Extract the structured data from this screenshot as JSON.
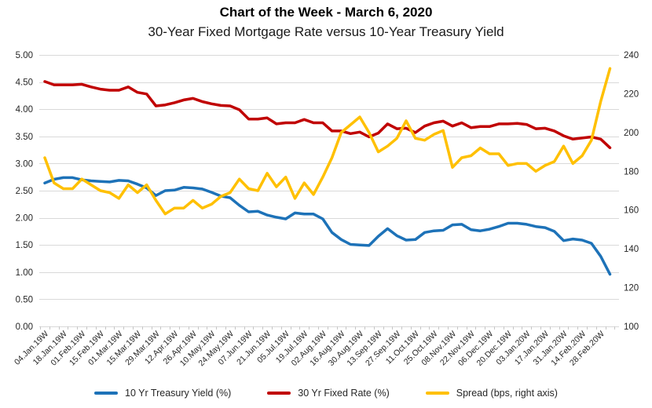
{
  "header": {
    "title": "Chart of the Week - March 6, 2020",
    "subtitle": "30-Year Fixed Mortgage Rate versus 10-Year Treasury Yield"
  },
  "chart_data": {
    "type": "line",
    "title": "Chart of the Week - March 6, 2020",
    "subtitle": "30-Year Fixed Mortgage Rate versus 10-Year Treasury Yield",
    "grid": "horizontal",
    "legend_position": "bottom",
    "n_points": 62,
    "points_per_label": 2,
    "x_tick_labels": [
      "04.Jan.19W",
      "18.Jan.19W",
      "01.Feb.19W",
      "15.Feb.19W",
      "01.Mar.19W",
      "15.Mar.19W",
      "29.Mar.19W",
      "12.Apr.19W",
      "26.Apr.19W",
      "10.May.19W",
      "24.May.19W",
      "07.Jun.19W",
      "21.Jun.19W",
      "05.Jul.19W",
      "19.Jul.19W",
      "02.Aug.19W",
      "16.Aug.19W",
      "30.Aug.19W",
      "13.Sep.19W",
      "27.Sep.19W",
      "11.Oct.19W",
      "25.Oct.19W",
      "08.Nov.19W",
      "22.Nov.19W",
      "06.Dec.19W",
      "20.Dec.19W",
      "03.Jan.20W",
      "17.Jan.20W",
      "31.Jan.20W",
      "14.Feb.20W",
      "28.Feb.20W"
    ],
    "left_axis": {
      "min": 0.0,
      "max": 5.0,
      "step": 0.5,
      "tick_labels": [
        "5.00",
        "4.50",
        "4.00",
        "3.50",
        "3.00",
        "2.50",
        "2.00",
        "1.50",
        "1.00",
        "0.50",
        "0.00"
      ]
    },
    "right_axis": {
      "min": 100,
      "max": 240,
      "step": 20,
      "tick_labels": [
        "240",
        "220",
        "200",
        "180",
        "160",
        "140",
        "120",
        "100"
      ]
    },
    "series": [
      {
        "name": "10 Yr Treasury Yield (%)",
        "axis": "left",
        "color": "#1D72B8",
        "values": [
          2.64,
          2.71,
          2.74,
          2.74,
          2.7,
          2.68,
          2.67,
          2.66,
          2.69,
          2.68,
          2.62,
          2.55,
          2.41,
          2.5,
          2.51,
          2.56,
          2.55,
          2.53,
          2.47,
          2.4,
          2.37,
          2.23,
          2.11,
          2.12,
          2.05,
          2.01,
          1.98,
          2.09,
          2.07,
          2.07,
          1.98,
          1.73,
          1.6,
          1.51,
          1.5,
          1.49,
          1.66,
          1.8,
          1.67,
          1.59,
          1.6,
          1.73,
          1.76,
          1.77,
          1.87,
          1.88,
          1.78,
          1.76,
          1.79,
          1.84,
          1.9,
          1.9,
          1.88,
          1.84,
          1.82,
          1.75,
          1.58,
          1.61,
          1.59,
          1.53,
          1.29,
          0.96
        ]
      },
      {
        "name": "30 Yr Fixed Rate (%)",
        "axis": "left",
        "color": "#C00000",
        "values": [
          4.51,
          4.45,
          4.45,
          4.45,
          4.46,
          4.41,
          4.37,
          4.35,
          4.35,
          4.41,
          4.31,
          4.28,
          4.06,
          4.08,
          4.12,
          4.17,
          4.2,
          4.14,
          4.1,
          4.07,
          4.06,
          3.99,
          3.82,
          3.82,
          3.84,
          3.73,
          3.75,
          3.75,
          3.81,
          3.75,
          3.75,
          3.6,
          3.6,
          3.55,
          3.58,
          3.49,
          3.56,
          3.73,
          3.64,
          3.65,
          3.57,
          3.69,
          3.75,
          3.78,
          3.69,
          3.75,
          3.66,
          3.68,
          3.68,
          3.73,
          3.73,
          3.74,
          3.72,
          3.64,
          3.65,
          3.6,
          3.51,
          3.45,
          3.47,
          3.49,
          3.45,
          3.29
        ]
      },
      {
        "name": "Spread (bps, right axis)",
        "axis": "right",
        "color": "#FFC000",
        "values": [
          187,
          174,
          171,
          171,
          176,
          173,
          170,
          169,
          166,
          173,
          169,
          173,
          165,
          158,
          161,
          161,
          165,
          161,
          163,
          167,
          169,
          176,
          171,
          170,
          179,
          172,
          177,
          166,
          174,
          168,
          177,
          187,
          200,
          204,
          208,
          200,
          190,
          193,
          197,
          206,
          197,
          196,
          199,
          201,
          182,
          187,
          188,
          192,
          189,
          189,
          183,
          184,
          184,
          180,
          183,
          185,
          193,
          184,
          188,
          196,
          216,
          233
        ]
      }
    ],
    "style": {
      "gridline_color": "#D9D9D9",
      "tick_color": "#C6C6C6",
      "axis_label_color": "#262626",
      "line_width": 3.5
    }
  }
}
